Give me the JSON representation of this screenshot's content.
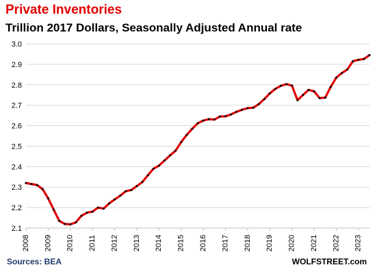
{
  "chart_data": {
    "type": "line",
    "title": "Private Inventories",
    "subtitle": "Trillion 2017 Dollars, Seasonally Adjusted Annual rate",
    "xlabel": "",
    "ylabel": "",
    "xlim": [
      2008,
      2023.5
    ],
    "ylim": [
      2.1,
      3.0
    ],
    "yticks": [
      2.1,
      2.2,
      2.3,
      2.4,
      2.5,
      2.6,
      2.7,
      2.8,
      2.9,
      3.0
    ],
    "ytick_labels": [
      "2.1",
      "2.2",
      "2.3",
      "2.4",
      "2.5",
      "2.6",
      "2.7",
      "2.8",
      "2.9",
      "3.0"
    ],
    "xticks": [
      2008,
      2009,
      2010,
      2011,
      2012,
      2013,
      2014,
      2015,
      2016,
      2017,
      2018,
      2019,
      2020,
      2021,
      2022,
      2023
    ],
    "xtick_labels": [
      "2008",
      "2009",
      "2010",
      "2011",
      "2012",
      "2013",
      "2014",
      "2015",
      "2016",
      "2017",
      "2018",
      "2019",
      "2020",
      "2021",
      "2022",
      "2023"
    ],
    "grid": "horizontal",
    "series": [
      {
        "color": "#e00000",
        "marker_color": "#000000",
        "x": [
          2008.0,
          2008.25,
          2008.5,
          2008.75,
          2009.0,
          2009.25,
          2009.5,
          2009.75,
          2010.0,
          2010.25,
          2010.5,
          2010.75,
          2011.0,
          2011.25,
          2011.5,
          2011.75,
          2012.0,
          2012.25,
          2012.5,
          2012.75,
          2013.0,
          2013.25,
          2013.5,
          2013.75,
          2014.0,
          2014.25,
          2014.5,
          2014.75,
          2015.0,
          2015.25,
          2015.5,
          2015.75,
          2016.0,
          2016.25,
          2016.5,
          2016.75,
          2017.0,
          2017.25,
          2017.5,
          2017.75,
          2018.0,
          2018.25,
          2018.5,
          2018.75,
          2019.0,
          2019.25,
          2019.5,
          2019.75,
          2020.0,
          2020.25,
          2020.5,
          2020.75,
          2021.0,
          2021.25,
          2021.5,
          2021.75,
          2022.0,
          2022.25,
          2022.5,
          2022.75,
          2023.0,
          2023.25,
          2023.5
        ],
        "values": [
          2.32,
          2.315,
          2.31,
          2.29,
          2.245,
          2.19,
          2.135,
          2.12,
          2.118,
          2.128,
          2.16,
          2.175,
          2.18,
          2.2,
          2.195,
          2.22,
          2.24,
          2.258,
          2.28,
          2.286,
          2.305,
          2.325,
          2.358,
          2.39,
          2.405,
          2.43,
          2.455,
          2.478,
          2.52,
          2.555,
          2.585,
          2.612,
          2.625,
          2.632,
          2.63,
          2.645,
          2.646,
          2.655,
          2.668,
          2.678,
          2.686,
          2.688,
          2.705,
          2.73,
          2.758,
          2.78,
          2.795,
          2.803,
          2.796,
          2.725,
          2.75,
          2.775,
          2.768,
          2.735,
          2.737,
          2.79,
          2.835,
          2.857,
          2.875,
          2.915,
          2.922,
          2.926,
          2.945
        ]
      }
    ]
  },
  "footer": {
    "source": "Sources: BEA",
    "watermark": "WOLFSTREET.com"
  }
}
